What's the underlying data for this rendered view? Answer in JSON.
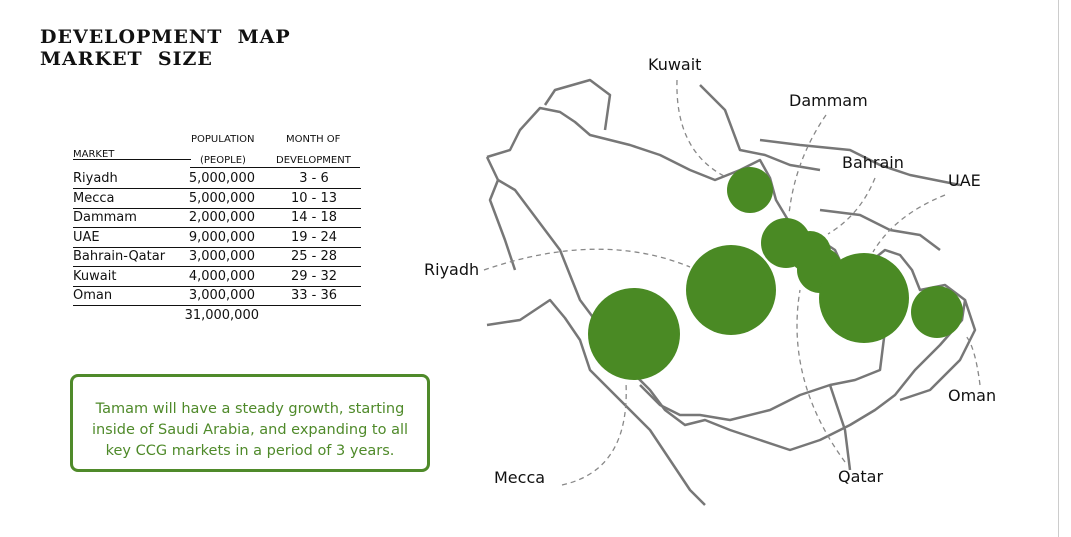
{
  "header": {
    "title_lines": [
      "DEVELOPMENT  MAP",
      "MARKET  SIZE"
    ]
  },
  "table": {
    "columns": [
      {
        "lines": [
          "MARKET"
        ]
      },
      {
        "lines": [
          "POPULATION",
          "(PEOPLE)"
        ]
      },
      {
        "lines": [
          "MONTH OF",
          "DEVELOPMENT"
        ]
      }
    ],
    "rows": [
      [
        "Riyadh",
        "5,000,000",
        "3 - 6"
      ],
      [
        "Mecca",
        "5,000,000",
        "10 - 13"
      ],
      [
        "Dammam",
        "2,000,000",
        "14 - 18"
      ],
      [
        "UAE",
        "9,000,000",
        "19 - 24"
      ],
      [
        "Bahrain-Qatar",
        "3,000,000",
        "25 - 28"
      ],
      [
        "Kuwait",
        "4,000,000",
        "29 - 32"
      ],
      [
        "Oman",
        "3,000,000",
        "33 - 36"
      ]
    ],
    "total": "31,000,000"
  },
  "note": {
    "lines": [
      "Tamam will have a steady growth, starting",
      "inside of Saudi Arabia, and expanding to all",
      "key CCG markets in a period of 3 years."
    ]
  },
  "map": {
    "labels": [
      "Kuwait",
      "Dammam",
      "Bahrain",
      "UAE",
      "Riyadh",
      "Oman",
      "Mecca",
      "Qatar"
    ]
  }
}
